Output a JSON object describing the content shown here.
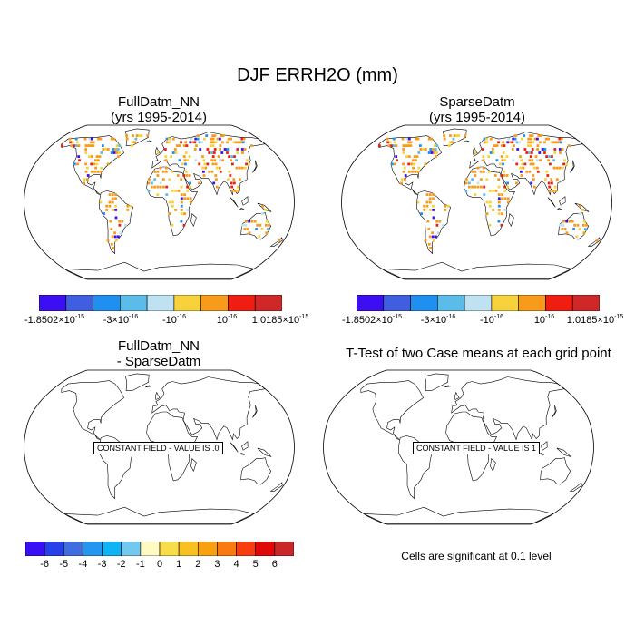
{
  "figure": {
    "title": "DJF ERRH2O (mm)"
  },
  "panels": {
    "p1": {
      "title_line1": "FullDatm_NN",
      "title_line2": "(yrs 1995-2014)"
    },
    "p2": {
      "title_line1": "SparseDatm",
      "title_line2": "(yrs 1995-2014)"
    },
    "p3": {
      "title_line1": "FullDatm_NN",
      "title_line2": "- SparseDatm",
      "constant_label": "CONSTANT FIELD - VALUE IS .0"
    },
    "p4": {
      "title_line1": "T-Test of two Case means at each grid point",
      "constant_label": "CONSTANT FIELD - VALUE IS 1"
    }
  },
  "colorbar_top": {
    "colors": [
      "#3b0ff2",
      "#3f5fe0",
      "#1f8ff0",
      "#5abcea",
      "#bfe2f2",
      "#f8d23a",
      "#f89a1a",
      "#f01e10",
      "#d02828"
    ],
    "labels": {
      "l1_base": "-1.8502×10",
      "l1_exp": "-15",
      "l2_base": "-3×10",
      "l2_exp": "-16",
      "l3_base": "-10",
      "l3_exp": "-16",
      "l4_base": "10",
      "l4_exp": "-16",
      "l5_base": "1.0185×10",
      "l5_exp": "-15"
    }
  },
  "colorbar_bottom": {
    "colors": [
      "#3a0ff5",
      "#2840e8",
      "#3e6ee0",
      "#2596f0",
      "#10b4f5",
      "#72c8ee",
      "#fffac0",
      "#f8dc4a",
      "#f8c020",
      "#f8a010",
      "#f87a10",
      "#f83c10",
      "#e00808",
      "#c82828"
    ],
    "labels": [
      "-6",
      "-5",
      "-4",
      "-3",
      "-2",
      "-1",
      "0",
      "1",
      "2",
      "3",
      "4",
      "5",
      "6"
    ]
  },
  "note": {
    "text": "Cells are significant at 0.1 level"
  },
  "icons": {
    "map": "world-map-robinson-icon"
  }
}
